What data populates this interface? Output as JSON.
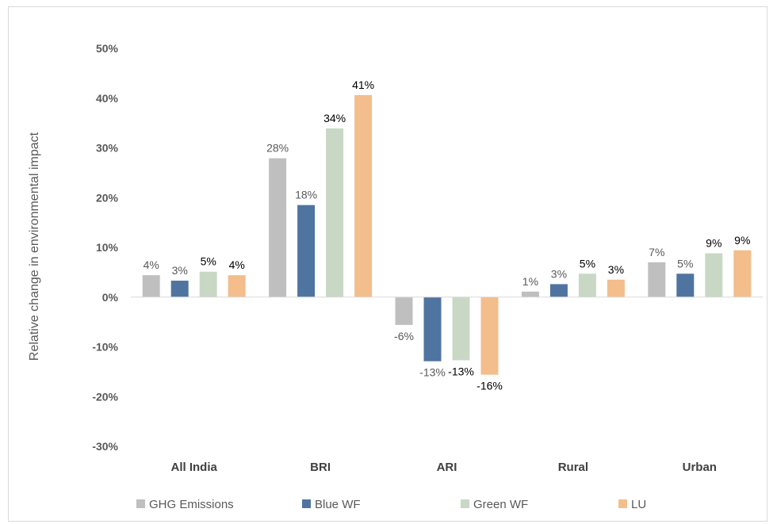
{
  "chart_data": {
    "type": "bar",
    "title": "",
    "xlabel": "",
    "ylabel": "Relative change in environmental impact",
    "ylim": [
      -30,
      50
    ],
    "yticks": [
      50,
      40,
      30,
      20,
      10,
      0,
      -10,
      -20,
      -30
    ],
    "ytick_labels": [
      "50%",
      "40%",
      "30%",
      "20%",
      "10%",
      "0%",
      "-10%",
      "-20%",
      "-30%"
    ],
    "categories": [
      "All India",
      "BRI",
      "ARI",
      "Rural",
      "Urban"
    ],
    "grid": false,
    "legend_position": "bottom",
    "series": [
      {
        "name": "GHG Emissions",
        "color": "#bfbfbf",
        "label_color": "#595959",
        "values": [
          4.4,
          27.9,
          -5.6,
          1.1,
          7.0
        ],
        "labels": [
          "4%",
          "28%",
          "-6%",
          "1%",
          "7%"
        ]
      },
      {
        "name": "Blue WF",
        "color": "#4f74a0",
        "label_color": "#595959",
        "values": [
          3.3,
          18.5,
          -12.9,
          2.6,
          4.7
        ],
        "labels": [
          "3%",
          "18%",
          "-13%",
          "3%",
          "5%"
        ]
      },
      {
        "name": "Green WF",
        "color": "#c9d8c5",
        "label_color": "#000000",
        "values": [
          5.1,
          33.9,
          -12.7,
          4.7,
          8.8
        ],
        "labels": [
          "5%",
          "34%",
          "-13%",
          "5%",
          "9%"
        ]
      },
      {
        "name": "LU",
        "color": "#f3bd8c",
        "label_color": "#000000",
        "values": [
          4.4,
          40.6,
          -15.6,
          3.5,
          9.4
        ],
        "labels": [
          "4%",
          "41%",
          "-16%",
          "3%",
          "9%"
        ]
      }
    ]
  }
}
